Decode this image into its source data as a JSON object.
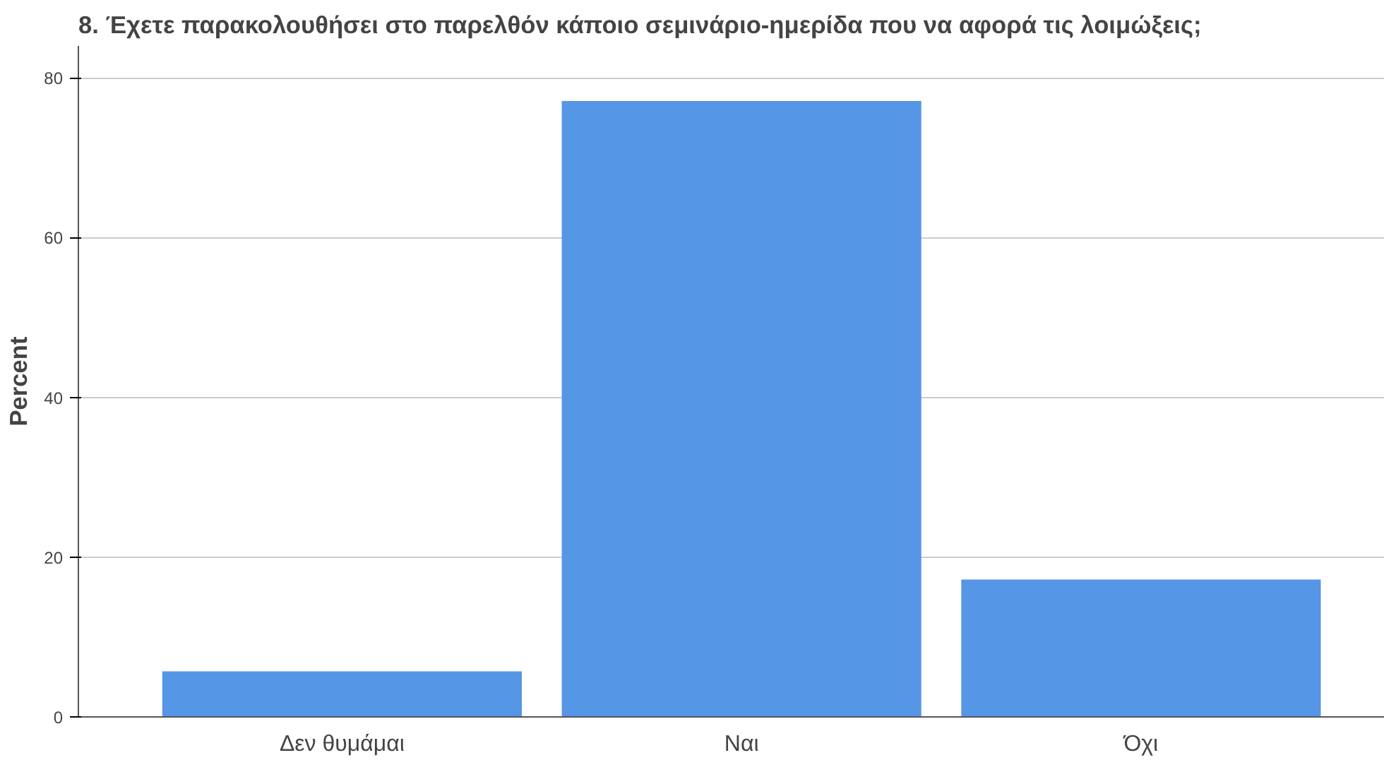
{
  "chart_data": {
    "type": "bar",
    "title": "8. Έχετε παρακολουθήσει στο παρελθόν κάποιο σεμινάριο-ημερίδα που να αφορά τις λοιμώξεις;",
    "ylabel": "Percent",
    "categories": [
      "Δεν θυμάμαι",
      "Ναι",
      "Όχι"
    ],
    "values": [
      5.7,
      77.1,
      17.2
    ],
    "color": "#5596e6",
    "ylim": [
      0,
      84
    ],
    "yticks": [
      0,
      20,
      40,
      60,
      80
    ],
    "grid": "y"
  }
}
